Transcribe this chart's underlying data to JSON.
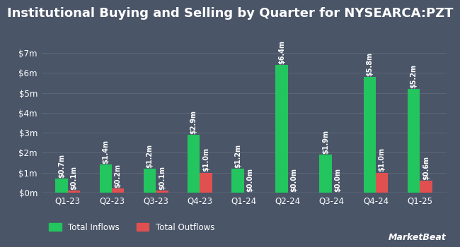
{
  "title": "Institutional Buying and Selling by Quarter for NYSEARCA:PZT",
  "quarters": [
    "Q1-23",
    "Q2-23",
    "Q3-23",
    "Q4-23",
    "Q1-24",
    "Q2-24",
    "Q3-24",
    "Q4-24",
    "Q1-25"
  ],
  "inflows": [
    0.7,
    1.4,
    1.2,
    2.9,
    1.2,
    6.4,
    1.9,
    5.8,
    5.2
  ],
  "outflows": [
    0.1,
    0.2,
    0.1,
    1.0,
    0.0,
    0.0,
    0.0,
    1.0,
    0.6
  ],
  "inflow_labels": [
    "$0.7m",
    "$1.4m",
    "$1.2m",
    "$2.9m",
    "$1.2m",
    "$6.4m",
    "$1.9m",
    "$5.8m",
    "$5.2m"
  ],
  "outflow_labels": [
    "$0.1m",
    "$0.2m",
    "$0.1m",
    "$1.0m",
    "$0.0m",
    "$0.0m",
    "$0.0m",
    "$1.0m",
    "$0.6m"
  ],
  "inflow_color": "#22c55e",
  "outflow_color": "#e05050",
  "bg_color": "#4a5568",
  "text_color": "#ffffff",
  "grid_color": "#5a6678",
  "ylabel_ticks": [
    "$0m",
    "$1m",
    "$2m",
    "$3m",
    "$4m",
    "$5m",
    "$6m",
    "$7m"
  ],
  "ytick_vals": [
    0,
    1,
    2,
    3,
    4,
    5,
    6,
    7
  ],
  "ylim": [
    0,
    7.8
  ],
  "bar_width": 0.28,
  "title_fontsize": 13,
  "tick_fontsize": 8.5,
  "label_fontsize": 7,
  "legend_fontsize": 8.5,
  "watermark": "MarketBeat"
}
